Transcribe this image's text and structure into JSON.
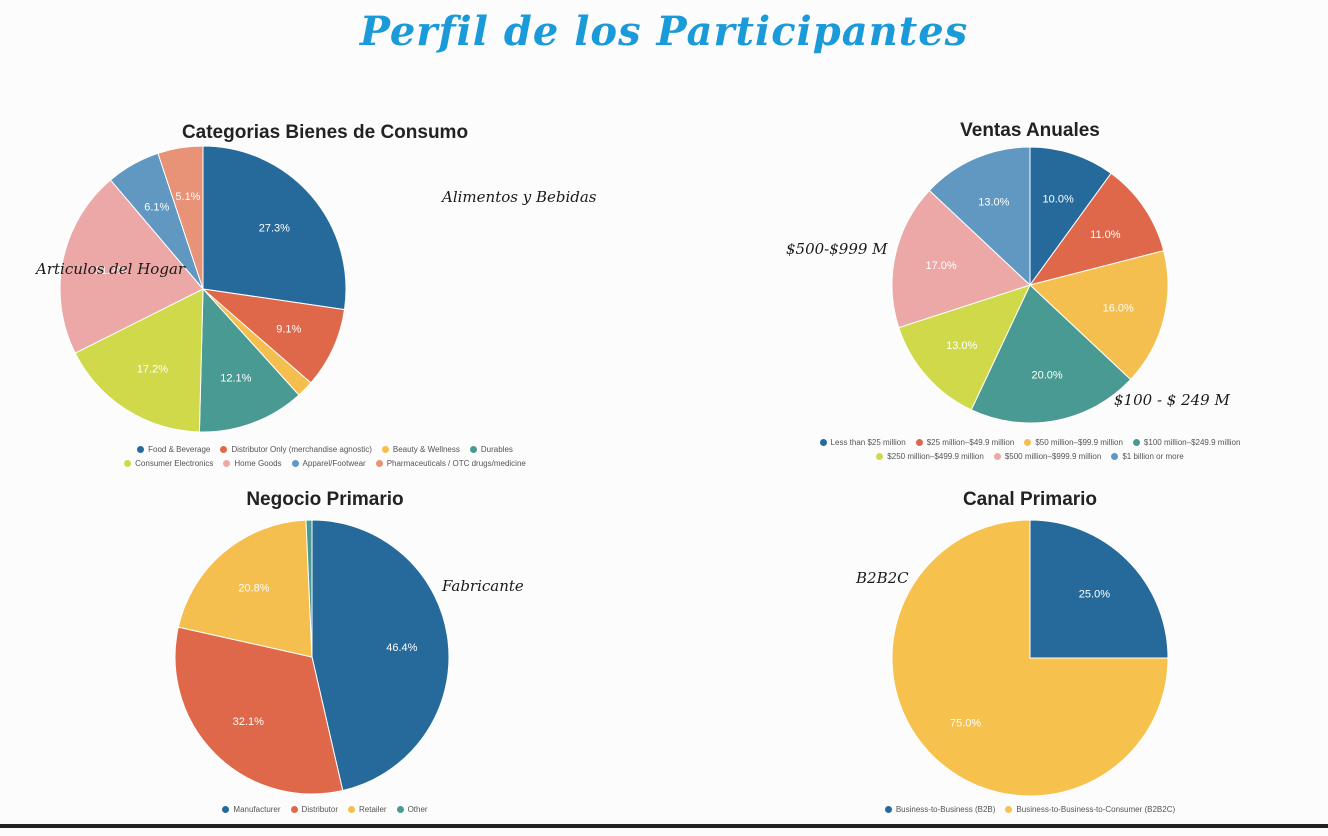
{
  "title": "Perfil de los Participantes",
  "chart_data": [
    {
      "type": "pie",
      "title": "Categorias Bienes de Consumo",
      "start_angle": 0,
      "slices": [
        {
          "name": "Food & Beverage",
          "value": 27.3,
          "label": "27.3%",
          "color": "#266a9c"
        },
        {
          "name": "Distributor Only (merchandise agnostic)",
          "value": 9.1,
          "label": "9.1%",
          "color": "#e0684a"
        },
        {
          "name": "Beauty & Wellness",
          "value": 1.9,
          "label": "",
          "color": "#f5bf4f"
        },
        {
          "name": "Durables",
          "value": 12.1,
          "label": "12.1%",
          "color": "#4a9a94"
        },
        {
          "name": "Consumer Electronics",
          "value": 17.2,
          "label": "17.2%",
          "color": "#cfd94a"
        },
        {
          "name": "Home Goods",
          "value": 21.2,
          "label": "21.2%",
          "color": "#eba8a6"
        },
        {
          "name": "Apparel/Footwear",
          "value": 6.1,
          "label": "6.1%",
          "color": "#6098c2"
        },
        {
          "name": "Pharmaceuticals / OTC drugs/medicine",
          "value": 5.1,
          "label": "5.1%",
          "color": "#e89278"
        }
      ],
      "legend_rows": [
        [
          0,
          1,
          2,
          3
        ],
        [
          4,
          5,
          6,
          7
        ]
      ],
      "annotations": [
        "Alimentos y Bebidas",
        "Articulos del Hogar"
      ]
    },
    {
      "type": "pie",
      "title": "Ventas Anuales",
      "start_angle": 0,
      "slices": [
        {
          "name": "Less than $25 million",
          "value": 10.0,
          "label": "10.0%",
          "color": "#266a9c"
        },
        {
          "name": "$25 million–$49.9 million",
          "value": 11.0,
          "label": "11.0%",
          "color": "#e0684a"
        },
        {
          "name": "$50 million–$99.9 million",
          "value": 16.0,
          "label": "16.0%",
          "color": "#f5bf4f"
        },
        {
          "name": "$100 million–$249.9 million",
          "value": 20.0,
          "label": "20.0%",
          "color": "#4a9a94"
        },
        {
          "name": "$250 million–$499.9 million",
          "value": 13.0,
          "label": "13.0%",
          "color": "#cfd94a"
        },
        {
          "name": "$500 million–$999.9 million",
          "value": 17.0,
          "label": "17.0%",
          "color": "#eba8a6"
        },
        {
          "name": "$1 billion or more",
          "value": 13.0,
          "label": "13.0%",
          "color": "#6098c2"
        }
      ],
      "legend_rows": [
        [
          0,
          1,
          2,
          3
        ],
        [
          4,
          5,
          6
        ]
      ],
      "annotations": [
        "$500-$999 M",
        "$100 - $ 249 M"
      ]
    },
    {
      "type": "pie",
      "title": "Negocio Primario",
      "start_angle": 0,
      "slices": [
        {
          "name": "Manufacturer",
          "value": 46.4,
          "label": "46.4%",
          "color": "#266a9c"
        },
        {
          "name": "Distributor",
          "value": 32.1,
          "label": "32.1%",
          "color": "#e0684a"
        },
        {
          "name": "Retailer",
          "value": 20.8,
          "label": "20.8%",
          "color": "#f5bf4f"
        },
        {
          "name": "Other",
          "value": 0.7,
          "label": "",
          "color": "#4a9a94"
        }
      ],
      "legend_rows": [
        [
          0,
          1,
          2,
          3
        ]
      ],
      "annotations": [
        "Fabricante"
      ]
    },
    {
      "type": "pie",
      "title": "Canal Primario",
      "start_angle": 0,
      "slices": [
        {
          "name": "Business-to-Business (B2B)",
          "value": 25.0,
          "label": "25.0%",
          "color": "#266a9c"
        },
        {
          "name": "Business-to-Business-to-Consumer (B2B2C)",
          "value": 75.0,
          "label": "75.0%",
          "color": "#f7c14e"
        }
      ],
      "legend_rows": [
        [
          0,
          1
        ]
      ],
      "annotations": [
        "B2B2C"
      ]
    }
  ]
}
